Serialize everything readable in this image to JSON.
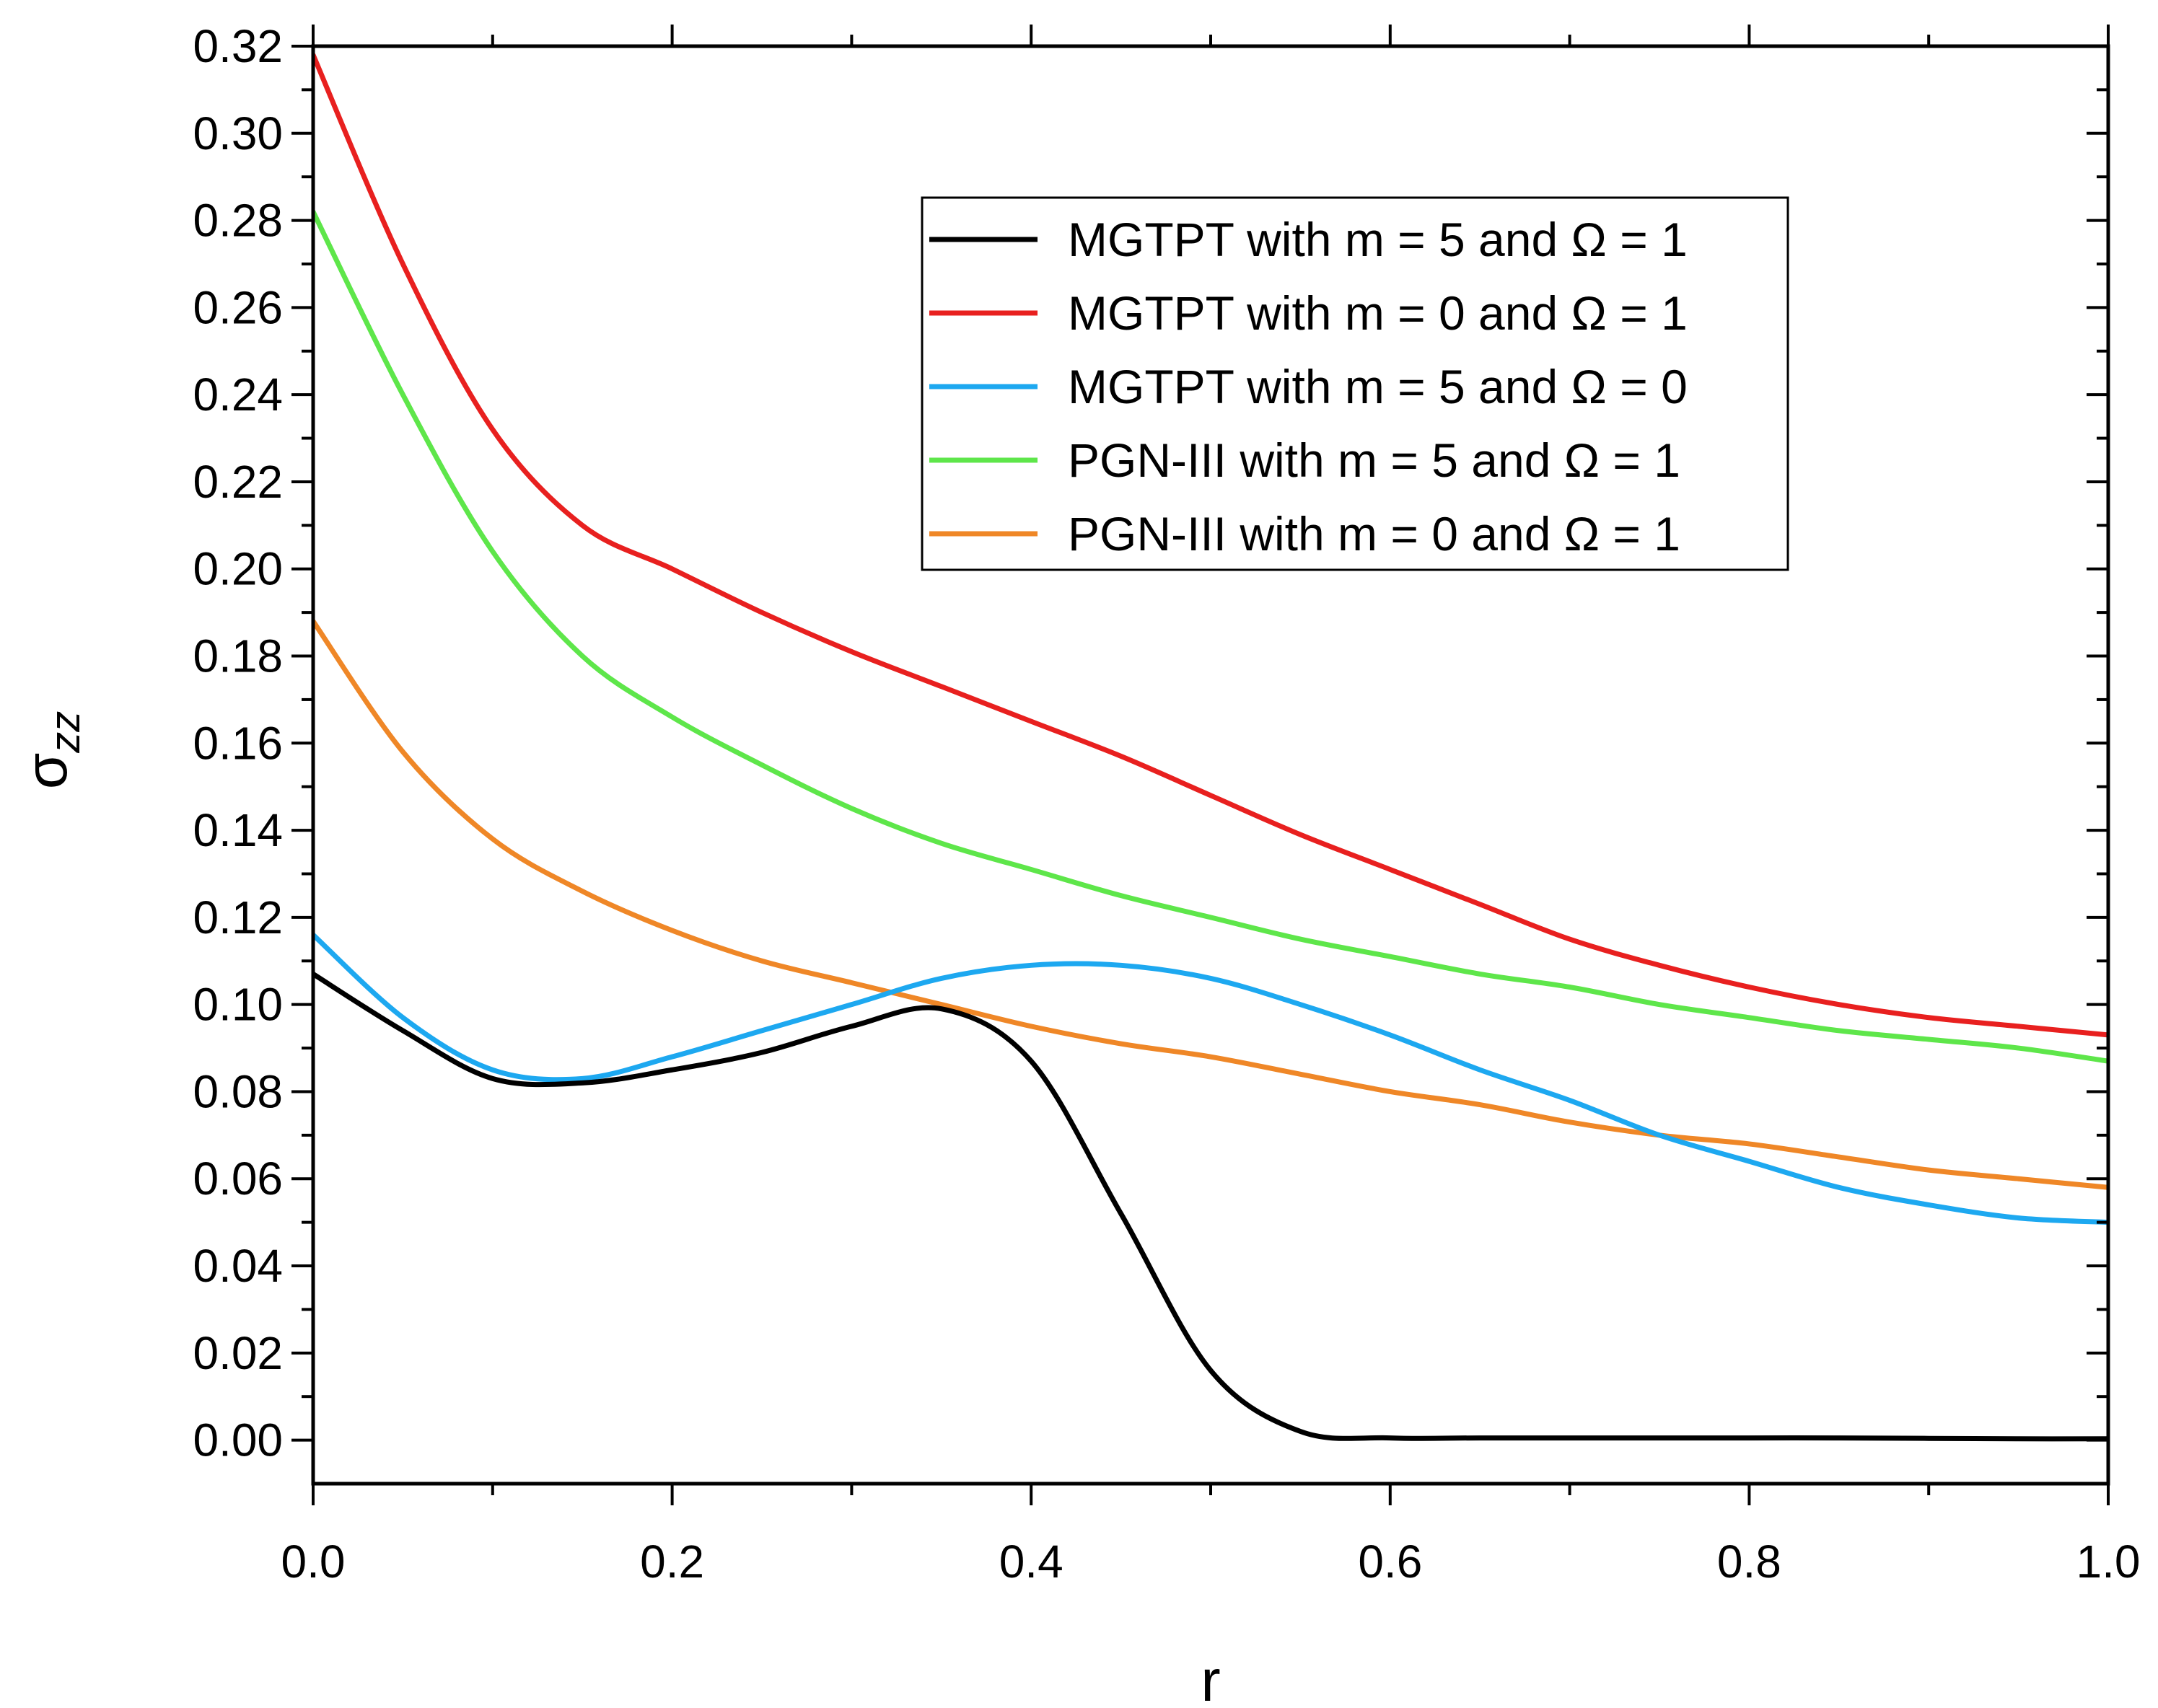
{
  "chart_data": {
    "type": "line",
    "title": "",
    "xlabel": "r",
    "ylabel_base": "σ",
    "ylabel_sub": "zz",
    "xlim": [
      0.0,
      1.0
    ],
    "ylim": [
      -0.01,
      0.32
    ],
    "x_ticks": [
      0.0,
      0.2,
      0.4,
      0.6,
      0.8,
      1.0
    ],
    "x_tick_labels": [
      "0.0",
      "0.2",
      "0.4",
      "0.6",
      "0.8",
      "1.0"
    ],
    "y_ticks": [
      0.0,
      0.02,
      0.04,
      0.06,
      0.08,
      0.1,
      0.12,
      0.14,
      0.16,
      0.18,
      0.2,
      0.22,
      0.24,
      0.26,
      0.28,
      0.3,
      0.32
    ],
    "y_tick_labels": [
      "0.00",
      "0.02",
      "0.04",
      "0.06",
      "0.08",
      "0.10",
      "0.12",
      "0.14",
      "0.16",
      "0.18",
      "0.20",
      "0.22",
      "0.24",
      "0.26",
      "0.28",
      "0.30",
      "0.32"
    ],
    "grid": false,
    "legend_position": "top-right",
    "x": [
      0.0,
      0.05,
      0.1,
      0.15,
      0.2,
      0.25,
      0.3,
      0.35,
      0.4,
      0.45,
      0.5,
      0.55,
      0.6,
      0.65,
      0.7,
      0.75,
      0.8,
      0.85,
      0.9,
      0.95,
      1.0
    ],
    "series": [
      {
        "name": "MGTPT with m = 5 and Ω = 1",
        "color": "#000000",
        "values": [
          0.107,
          0.094,
          0.083,
          0.082,
          0.085,
          0.089,
          0.095,
          0.099,
          0.087,
          0.052,
          0.016,
          0.002,
          0.0005,
          0.0005,
          0.0005,
          0.0005,
          0.0005,
          0.0005,
          0.0004,
          0.0003,
          0.0003
        ]
      },
      {
        "name": "MGTPT with m = 0 and Ω = 1",
        "color": "#e8201f",
        "values": [
          0.318,
          0.27,
          0.232,
          0.21,
          0.2,
          0.19,
          0.181,
          0.173,
          0.165,
          0.157,
          0.148,
          0.139,
          0.131,
          0.123,
          0.115,
          0.109,
          0.104,
          0.1,
          0.097,
          0.095,
          0.093
        ]
      },
      {
        "name": "MGTPT with m = 5 and Ω = 0",
        "color": "#1da8f0",
        "values": [
          0.116,
          0.097,
          0.085,
          0.083,
          0.088,
          0.094,
          0.1,
          0.106,
          0.109,
          0.109,
          0.106,
          0.1,
          0.093,
          0.085,
          0.078,
          0.07,
          0.064,
          0.058,
          0.054,
          0.051,
          0.05
        ]
      },
      {
        "name": "PGN-III with m = 5 and Ω = 1",
        "color": "#5ee64a",
        "values": [
          0.282,
          0.24,
          0.204,
          0.18,
          0.166,
          0.155,
          0.145,
          0.137,
          0.131,
          0.125,
          0.12,
          0.115,
          0.111,
          0.107,
          0.104,
          0.1,
          0.097,
          0.094,
          0.092,
          0.09,
          0.087
        ]
      },
      {
        "name": "PGN-III with m = 0 and Ω = 1",
        "color": "#ef8727",
        "values": [
          0.188,
          0.158,
          0.138,
          0.126,
          0.117,
          0.11,
          0.105,
          0.1,
          0.095,
          0.091,
          0.088,
          0.084,
          0.08,
          0.077,
          0.073,
          0.07,
          0.068,
          0.065,
          0.062,
          0.06,
          0.058
        ]
      }
    ]
  }
}
